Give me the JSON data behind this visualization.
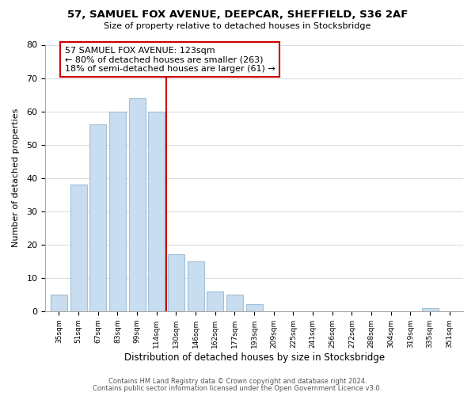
{
  "title": "57, SAMUEL FOX AVENUE, DEEPCAR, SHEFFIELD, S36 2AF",
  "subtitle": "Size of property relative to detached houses in Stocksbridge",
  "xlabel": "Distribution of detached houses by size in Stocksbridge",
  "ylabel": "Number of detached properties",
  "bar_labels": [
    "35sqm",
    "51sqm",
    "67sqm",
    "83sqm",
    "99sqm",
    "114sqm",
    "130sqm",
    "146sqm",
    "162sqm",
    "177sqm",
    "193sqm",
    "209sqm",
    "225sqm",
    "241sqm",
    "256sqm",
    "272sqm",
    "288sqm",
    "304sqm",
    "319sqm",
    "335sqm",
    "351sqm"
  ],
  "bar_values": [
    5,
    38,
    56,
    60,
    64,
    60,
    17,
    15,
    6,
    5,
    2,
    0,
    0,
    0,
    0,
    0,
    0,
    0,
    0,
    1,
    0
  ],
  "bar_color": "#c8ddef",
  "bar_edge_color": "#a0c0d8",
  "vline_x": 5.5,
  "vline_color": "#cc0000",
  "annotation_lines": [
    "57 SAMUEL FOX AVENUE: 123sqm",
    "← 80% of detached houses are smaller (263)",
    "18% of semi-detached houses are larger (61) →"
  ],
  "ylim": [
    0,
    80
  ],
  "yticks": [
    0,
    10,
    20,
    30,
    40,
    50,
    60,
    70,
    80
  ],
  "footer_line1": "Contains HM Land Registry data © Crown copyright and database right 2024.",
  "footer_line2": "Contains public sector information licensed under the Open Government Licence v3.0.",
  "bg_color": "#ffffff",
  "plot_bg_color": "#ffffff",
  "grid_color": "#dddddd"
}
